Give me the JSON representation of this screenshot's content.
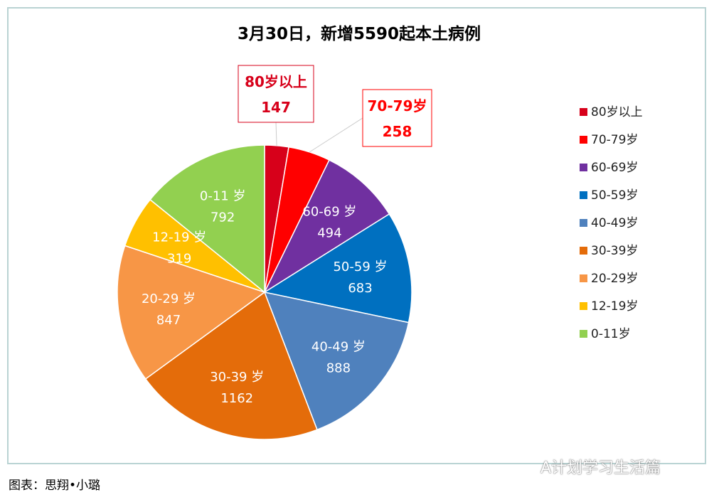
{
  "chart_data": {
    "type": "pie",
    "title": "3月30日，新增5590起本土病例",
    "start": "top-clockwise",
    "legend_position": "right",
    "slices": [
      {
        "label": "80岁以上",
        "value": 147,
        "color": "#d7001a",
        "callout": true
      },
      {
        "label": "70-79岁",
        "value": 258,
        "color": "#ff0000",
        "callout": true
      },
      {
        "label": "60-69岁",
        "value": 494,
        "color": "#7030a0"
      },
      {
        "label": "50-59岁",
        "value": 683,
        "color": "#0070c0"
      },
      {
        "label": "40-49岁",
        "value": 888,
        "color": "#4f81bd"
      },
      {
        "label": "30-39岁",
        "value": 1162,
        "color": "#e46c0a"
      },
      {
        "label": "20-29岁",
        "value": 847,
        "color": "#f79646"
      },
      {
        "label": "12-19岁",
        "value": 319,
        "color": "#ffc000"
      },
      {
        "label": "0-11岁",
        "value": 792,
        "color": "#92d050"
      }
    ]
  },
  "caption": "图表：思翔•小璐",
  "watermark": "A计划学习生活篇"
}
